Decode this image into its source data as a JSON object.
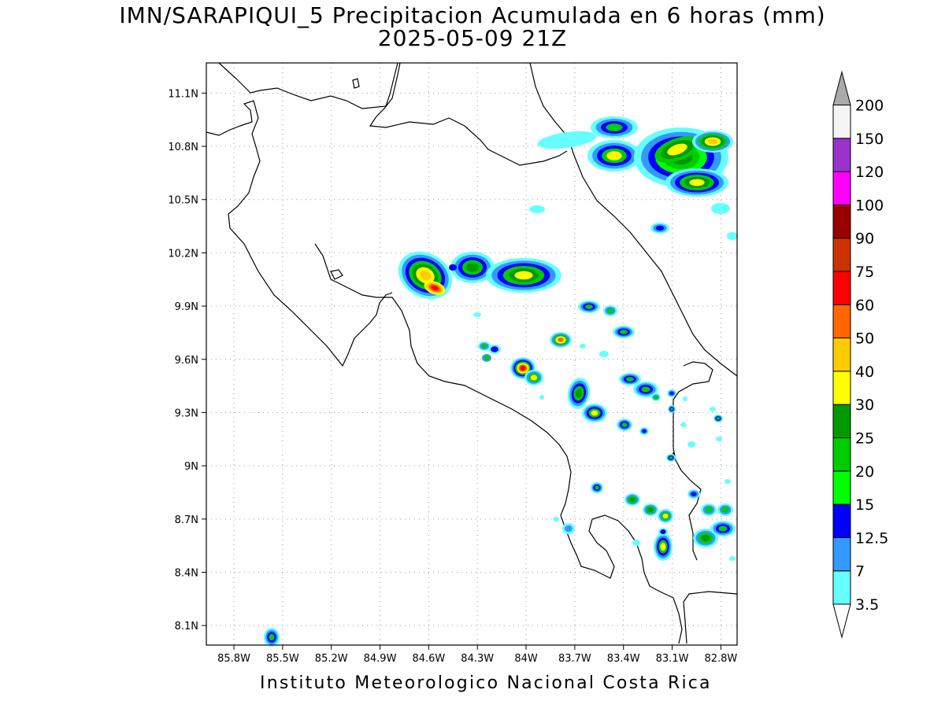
{
  "title": {
    "line1": "IMN/SARAPIQUI_5 Precipitacion Acumulada en 6 horas (mm)",
    "line2": "2025-05-09 21Z"
  },
  "footer": "Instituto Meteorologico Nacional Costa Rica",
  "map": {
    "lon_range": [
      -85.97,
      -82.7
    ],
    "lat_range": [
      7.99,
      11.27
    ],
    "lon_ticks": [
      "85.8W",
      "85.5W",
      "85.2W",
      "84.9W",
      "84.6W",
      "84.3W",
      "84W",
      "83.7W",
      "83.4W",
      "83.1W",
      "82.8W"
    ],
    "lon_values": [
      -85.8,
      -85.5,
      -85.2,
      -84.9,
      -84.6,
      -84.3,
      -84.0,
      -83.7,
      -83.4,
      -83.1,
      -82.8
    ],
    "lat_ticks": [
      "8.1N",
      "8.4N",
      "8.7N",
      "9N",
      "9.3N",
      "9.6N",
      "9.9N",
      "10.2N",
      "10.5N",
      "10.8N",
      "11.1N"
    ],
    "lat_values": [
      8.1,
      8.4,
      8.7,
      9.0,
      9.3,
      9.6,
      9.9,
      10.2,
      10.5,
      10.8,
      11.1
    ],
    "grid": true
  },
  "legend": {
    "labels": [
      "3.5",
      "7",
      "12.5",
      "15",
      "20",
      "25",
      "30",
      "40",
      "50",
      "60",
      "75",
      "90",
      "100",
      "120",
      "150",
      "200"
    ],
    "colors": [
      "#66ffff",
      "#3399ff",
      "#0000ff",
      "#00ff00",
      "#00cc00",
      "#009900",
      "#ffff00",
      "#ffcc00",
      "#ff6600",
      "#ff0000",
      "#cc3300",
      "#990000",
      "#ff00ff",
      "#9933cc",
      "#f5f5f5",
      "#aaaaaa"
    ]
  }
}
